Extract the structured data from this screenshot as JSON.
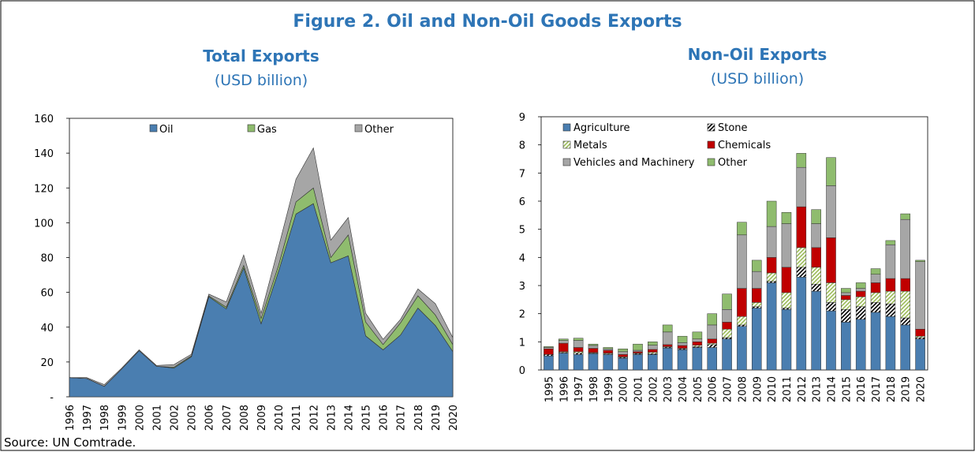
{
  "title": "Figure 2. Oil and Non-Oil Goods Exports",
  "source": "Source: UN Comtrade.",
  "chart_data": [
    {
      "type": "area",
      "title": "Total Exports",
      "subtitle": "(USD billion)",
      "categories": [
        "1996",
        "1997",
        "1998",
        "1999",
        "2000",
        "2001",
        "2002",
        "2003",
        "2006",
        "2007",
        "2008",
        "2009",
        "2010",
        "2011",
        "2012",
        "2013",
        "2014",
        "2015",
        "2016",
        "2017",
        "2018",
        "2019",
        "2020"
      ],
      "series": [
        {
          "name": "Oil",
          "color": "#4a7eb0",
          "values": [
            11,
            10.5,
            6,
            16,
            26.5,
            17.5,
            16.5,
            23,
            57.5,
            50.5,
            74,
            42,
            72,
            105,
            111,
            77,
            81,
            35,
            27,
            35.5,
            51,
            41,
            26
          ]
        },
        {
          "name": "Gas",
          "color": "#8fbc6e",
          "values": [
            0,
            0,
            0,
            0,
            0,
            0,
            0.5,
            0.5,
            0.5,
            1,
            1.5,
            3,
            3.5,
            7,
            9,
            3,
            12,
            8,
            3,
            7,
            7,
            6,
            4
          ]
        },
        {
          "name": "Other",
          "color": "#a6a6a6",
          "values": [
            0,
            0.5,
            1,
            0.5,
            0.5,
            0.5,
            1.5,
            1,
            1,
            3,
            6,
            3,
            10.5,
            13,
            23,
            10,
            10,
            5,
            3,
            2,
            4,
            6.5,
            4
          ]
        }
      ],
      "ylim": [
        0,
        160
      ],
      "yticks": [
        {
          "value": 0,
          "label": "-"
        },
        20,
        40,
        60,
        80,
        100,
        120,
        140,
        160
      ],
      "legend": "top"
    },
    {
      "type": "stacked-bar",
      "title": "Non-Oil Exports",
      "subtitle": "(USD billion)",
      "categories": [
        "1995",
        "1996",
        "1997",
        "1998",
        "1999",
        "2000",
        "2001",
        "2002",
        "2003",
        "2004",
        "2005",
        "2006",
        "2007",
        "2008",
        "2009",
        "2010",
        "2011",
        "2012",
        "2013",
        "2014",
        "2015",
        "2016",
        "2017",
        "2018",
        "2019",
        "2020"
      ],
      "series": [
        {
          "name": "Agriculture",
          "color": "#4a7eb0",
          "values": [
            0.5,
            0.6,
            0.55,
            0.58,
            0.55,
            0.42,
            0.55,
            0.55,
            0.78,
            0.72,
            0.8,
            0.8,
            1.1,
            1.55,
            2.2,
            3.1,
            2.15,
            3.3,
            2.8,
            2.1,
            1.7,
            1.8,
            2.05,
            1.9,
            1.6,
            1.1
          ]
        },
        {
          "name": "Stone",
          "color": "#000000",
          "hatch": true,
          "values": [
            0.05,
            0.02,
            0.05,
            0.02,
            0.02,
            0.03,
            0.03,
            0.03,
            0.03,
            0.03,
            0.03,
            0.1,
            0.05,
            0.05,
            0.05,
            0.05,
            0.05,
            0.35,
            0.25,
            0.3,
            0.45,
            0.45,
            0.35,
            0.45,
            0.25,
            0.05
          ]
        },
        {
          "name": "Metals",
          "color": "#9bbb59",
          "hatch": true,
          "values": [
            0,
            0.03,
            0.05,
            0.02,
            0.03,
            0.02,
            0.02,
            0.05,
            0.02,
            0.02,
            0.05,
            0.05,
            0.3,
            0.3,
            0.15,
            0.3,
            0.55,
            0.7,
            0.6,
            0.7,
            0.35,
            0.35,
            0.35,
            0.45,
            0.95,
            0.05
          ]
        },
        {
          "name": "Chemicals",
          "color": "#c00000",
          "values": [
            0.2,
            0.3,
            0.15,
            0.15,
            0.1,
            0.08,
            0.05,
            0.1,
            0.07,
            0.1,
            0.12,
            0.15,
            0.25,
            1.0,
            0.5,
            0.55,
            0.9,
            1.45,
            0.7,
            1.6,
            0.15,
            0.2,
            0.35,
            0.45,
            0.45,
            0.25
          ]
        },
        {
          "name": "Vehicles and Machinery",
          "color": "#a6a6a6",
          "values": [
            0.05,
            0.1,
            0.25,
            0.1,
            0.05,
            0.1,
            0.05,
            0.15,
            0.45,
            0.1,
            0.1,
            0.5,
            0.45,
            1.9,
            0.6,
            1.1,
            1.55,
            1.4,
            0.85,
            1.85,
            0.1,
            0.1,
            0.3,
            1.2,
            2.1,
            2.4
          ]
        },
        {
          "name": "Other",
          "color": "#8fbc6e",
          "values": [
            0.03,
            0.05,
            0.08,
            0.05,
            0.05,
            0.1,
            0.22,
            0.12,
            0.25,
            0.23,
            0.25,
            0.4,
            0.55,
            0.45,
            0.4,
            0.9,
            0.4,
            0.5,
            0.5,
            1.0,
            0.15,
            0.2,
            0.2,
            0.15,
            0.2,
            0.05
          ]
        }
      ],
      "ylim": [
        0,
        9
      ],
      "yticks": [
        0,
        1,
        2,
        3,
        4,
        5,
        6,
        7,
        8,
        9
      ],
      "legend": "top-left"
    }
  ]
}
